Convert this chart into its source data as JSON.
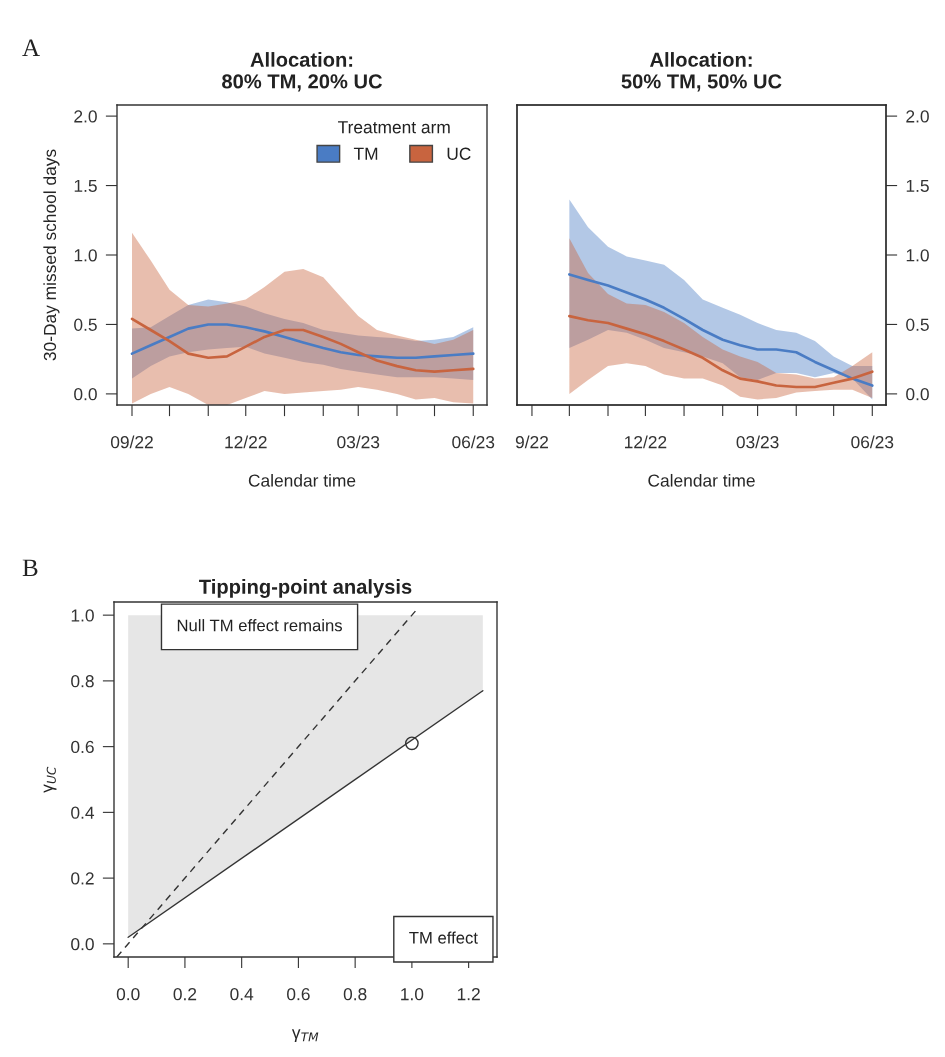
{
  "chart_data": [
    {
      "type": "line",
      "title": "Allocation:\n80% TM, 20% UC",
      "xlabel": "Calendar time",
      "ylabel": "30-Day missed school days",
      "legend_title": "Treatment arm",
      "legend": "top right",
      "grid": false,
      "annotations": [
        "A"
      ],
      "x": [
        "2022-09-01",
        "2022-09-16",
        "2022-10-01",
        "2022-10-16",
        "2022-11-01",
        "2022-11-16",
        "2022-12-01",
        "2022-12-16",
        "2023-01-01",
        "2023-01-16",
        "2023-02-01",
        "2023-02-15",
        "2023-03-01",
        "2023-03-16",
        "2023-04-01",
        "2023-04-16",
        "2023-05-01",
        "2023-05-16",
        "2023-06-01"
      ],
      "series": [
        {
          "name": "TM",
          "color": "#4a7cc4",
          "values": [
            0.29,
            0.35,
            0.41,
            0.47,
            0.5,
            0.5,
            0.48,
            0.45,
            0.41,
            0.37,
            0.33,
            0.3,
            0.28,
            0.27,
            0.26,
            0.26,
            0.27,
            0.28,
            0.29
          ],
          "lower": [
            0.11,
            0.2,
            0.27,
            0.3,
            0.32,
            0.33,
            0.34,
            0.29,
            0.26,
            0.23,
            0.21,
            0.18,
            0.16,
            0.14,
            0.12,
            0.12,
            0.12,
            0.11,
            0.1
          ],
          "upper": [
            0.47,
            0.48,
            0.56,
            0.64,
            0.68,
            0.66,
            0.63,
            0.58,
            0.54,
            0.51,
            0.46,
            0.44,
            0.42,
            0.41,
            0.4,
            0.38,
            0.39,
            0.41,
            0.48
          ]
        },
        {
          "name": "UC",
          "color": "#c8643f",
          "values": [
            0.54,
            0.46,
            0.38,
            0.29,
            0.26,
            0.27,
            0.34,
            0.41,
            0.46,
            0.46,
            0.41,
            0.36,
            0.3,
            0.24,
            0.2,
            0.17,
            0.16,
            0.17,
            0.18
          ],
          "lower": [
            -0.07,
            0.0,
            0.05,
            0.0,
            -0.08,
            -0.08,
            -0.03,
            0.02,
            0.0,
            0.01,
            0.02,
            0.03,
            0.05,
            0.03,
            0.0,
            -0.04,
            -0.03,
            -0.06,
            -0.07
          ],
          "upper": [
            1.16,
            0.96,
            0.75,
            0.64,
            0.63,
            0.65,
            0.68,
            0.77,
            0.88,
            0.9,
            0.84,
            0.7,
            0.56,
            0.46,
            0.42,
            0.39,
            0.36,
            0.39,
            0.46
          ]
        }
      ],
      "xlim": [
        "2022-08-20",
        "2023-06-12"
      ],
      "xticks": [
        {
          "value": "2022-09-01",
          "label": "09/22"
        },
        {
          "value": "2022-10-01",
          "label": null
        },
        {
          "value": "2022-11-01",
          "label": null
        },
        {
          "value": "2022-12-01",
          "label": "12/22"
        },
        {
          "value": "2023-01-01",
          "label": null
        },
        {
          "value": "2023-02-01",
          "label": null
        },
        {
          "value": "2023-03-01",
          "label": "03/23"
        },
        {
          "value": "2023-04-01",
          "label": null
        },
        {
          "value": "2023-05-01",
          "label": null
        },
        {
          "value": "2023-06-01",
          "label": "06/23"
        }
      ],
      "ylim": [
        -0.08,
        2.08
      ],
      "yticks": [
        {
          "value": 0,
          "label": "0.0"
        },
        0.5,
        {
          "value": 1,
          "label": "1.0"
        },
        1.5,
        {
          "value": 2,
          "label": "2.0"
        }
      ]
    },
    {
      "type": "line",
      "title": "Allocation:\n50% TM, 50% UC",
      "xlabel": "Calendar time",
      "grid": false,
      "x": [
        "2022-10-01",
        "2022-10-16",
        "2022-11-01",
        "2022-11-16",
        "2022-12-01",
        "2022-12-16",
        "2023-01-01",
        "2023-01-16",
        "2023-02-01",
        "2023-02-15",
        "2023-03-01",
        "2023-03-16",
        "2023-04-01",
        "2023-04-16",
        "2023-05-01",
        "2023-05-16",
        "2023-06-01"
      ],
      "series": [
        {
          "color": "#4a7cc4",
          "axis": "y2",
          "values": [
            0.86,
            0.82,
            0.78,
            0.73,
            0.68,
            0.62,
            0.54,
            0.46,
            0.39,
            0.35,
            0.32,
            0.32,
            0.3,
            0.23,
            0.17,
            0.11,
            0.06
          ],
          "lower": [
            0.33,
            0.39,
            0.46,
            0.44,
            0.39,
            0.33,
            0.3,
            0.27,
            0.22,
            0.12,
            0.1,
            0.15,
            0.15,
            0.12,
            0.15,
            0.11,
            -0.04
          ],
          "upper": [
            1.4,
            1.2,
            1.06,
            0.99,
            0.96,
            0.93,
            0.82,
            0.68,
            0.62,
            0.57,
            0.51,
            0.46,
            0.44,
            0.38,
            0.27,
            0.2,
            0.2
          ]
        },
        {
          "color": "#c8643f",
          "axis": "y2",
          "values": [
            0.56,
            0.53,
            0.51,
            0.47,
            0.43,
            0.38,
            0.32,
            0.26,
            0.17,
            0.11,
            0.09,
            0.06,
            0.05,
            0.05,
            0.08,
            0.11,
            0.16
          ],
          "lower": [
            0.0,
            0.1,
            0.2,
            0.22,
            0.2,
            0.14,
            0.11,
            0.11,
            0.06,
            -0.02,
            -0.04,
            -0.03,
            0.01,
            0.02,
            0.03,
            0.03,
            -0.03
          ],
          "upper": [
            1.12,
            0.87,
            0.72,
            0.65,
            0.64,
            0.59,
            0.51,
            0.41,
            0.32,
            0.27,
            0.23,
            0.15,
            0.14,
            0.11,
            0.12,
            0.2,
            0.3
          ]
        }
      ],
      "xlim": [
        "2022-08-20",
        "2023-06-12"
      ],
      "xticks": [
        {
          "value": "2022-09-01",
          "label": "9/22"
        },
        {
          "value": "2022-10-01",
          "label": null
        },
        {
          "value": "2022-11-01",
          "label": null
        },
        {
          "value": "2022-12-01",
          "label": "12/22"
        },
        {
          "value": "2023-01-01",
          "label": null
        },
        {
          "value": "2023-02-01",
          "label": null
        },
        {
          "value": "2023-03-01",
          "label": "03/23"
        },
        {
          "value": "2023-04-01",
          "label": null
        },
        {
          "value": "2023-05-01",
          "label": null
        },
        {
          "value": "2023-06-01",
          "label": "06/23"
        }
      ],
      "y2lim": [
        -0.08,
        2.08
      ],
      "y2ticks": [
        {
          "value": 0,
          "label": "0.0"
        },
        0.5,
        {
          "value": 1,
          "label": "1.0"
        },
        1.5,
        {
          "value": 2,
          "label": "2.0"
        }
      ]
    },
    {
      "type": "line",
      "title": "Tipping-point analysis",
      "xlabel": "γ$_{TM}$",
      "ylabel": "γ$_{UC}$",
      "grid": false,
      "annotations": [
        "B",
        "Null TM effect remains",
        "TM effect"
      ],
      "series": [
        {
          "type": "line",
          "color": "#333333",
          "line_style": "dashed",
          "x": [
            -0.04,
            1.02
          ],
          "values": [
            -0.04,
            1.02
          ]
        },
        {
          "type": "line",
          "color": "#333333",
          "line_style": "solid",
          "x": [
            0.0,
            1.25
          ],
          "values": [
            0.02,
            0.77
          ],
          "lower": [
            0.02,
            0.77
          ],
          "upper": [
            1.0,
            1.0
          ]
        },
        {
          "type": "scatter",
          "color": "#333333",
          "marker": "circle",
          "x": [
            1.0
          ],
          "values": [
            0.61
          ]
        }
      ],
      "xlim": [
        -0.05,
        1.3
      ],
      "xticks": [
        {
          "value": 0,
          "label": "0.0"
        },
        0.2,
        0.4,
        0.6,
        0.8,
        {
          "value": 1,
          "label": "1.0"
        },
        1.2
      ],
      "ylim": [
        -0.04,
        1.04
      ],
      "yticks": [
        {
          "value": 0,
          "label": "0.0"
        },
        0.2,
        0.4,
        0.6,
        0.8,
        {
          "value": 1,
          "label": "1.0"
        }
      ]
    }
  ]
}
